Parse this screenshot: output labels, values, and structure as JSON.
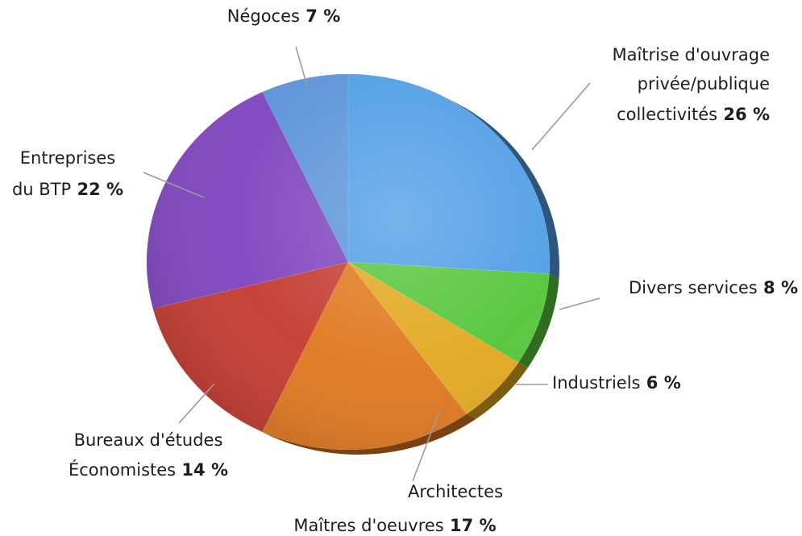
{
  "chart_data": {
    "type": "pie",
    "start": "top",
    "direction": "clockwise",
    "slices": [
      {
        "label_lines": [
          "Maîtrise d'ouvrage",
          "privée/publique",
          "collectivités"
        ],
        "value": 26,
        "value_label": "26 %",
        "color": "#4f9ee6"
      },
      {
        "label_lines": [
          "Divers services"
        ],
        "value": 8,
        "value_label": "8 %",
        "color": "#55c63a"
      },
      {
        "label_lines": [
          "Industriels"
        ],
        "value": 6,
        "value_label": "6 %",
        "color": "#e2a81f"
      },
      {
        "label_lines": [
          "Architectes",
          "Maîtres d'oeuvres"
        ],
        "value": 17,
        "value_label": "17 %",
        "color": "#e0781f"
      },
      {
        "label_lines": [
          "Bureaux d'études",
          "Économistes"
        ],
        "value": 14,
        "value_label": "14 %",
        "color": "#c43b31"
      },
      {
        "label_lines": [
          "Entreprises",
          "du BTP"
        ],
        "value": 22,
        "value_label": "22 %",
        "color": "#7f44bf"
      },
      {
        "label_lines": [
          "Négoces"
        ],
        "value": 7,
        "value_label": "7 %",
        "color": "#5b94d8"
      }
    ]
  }
}
